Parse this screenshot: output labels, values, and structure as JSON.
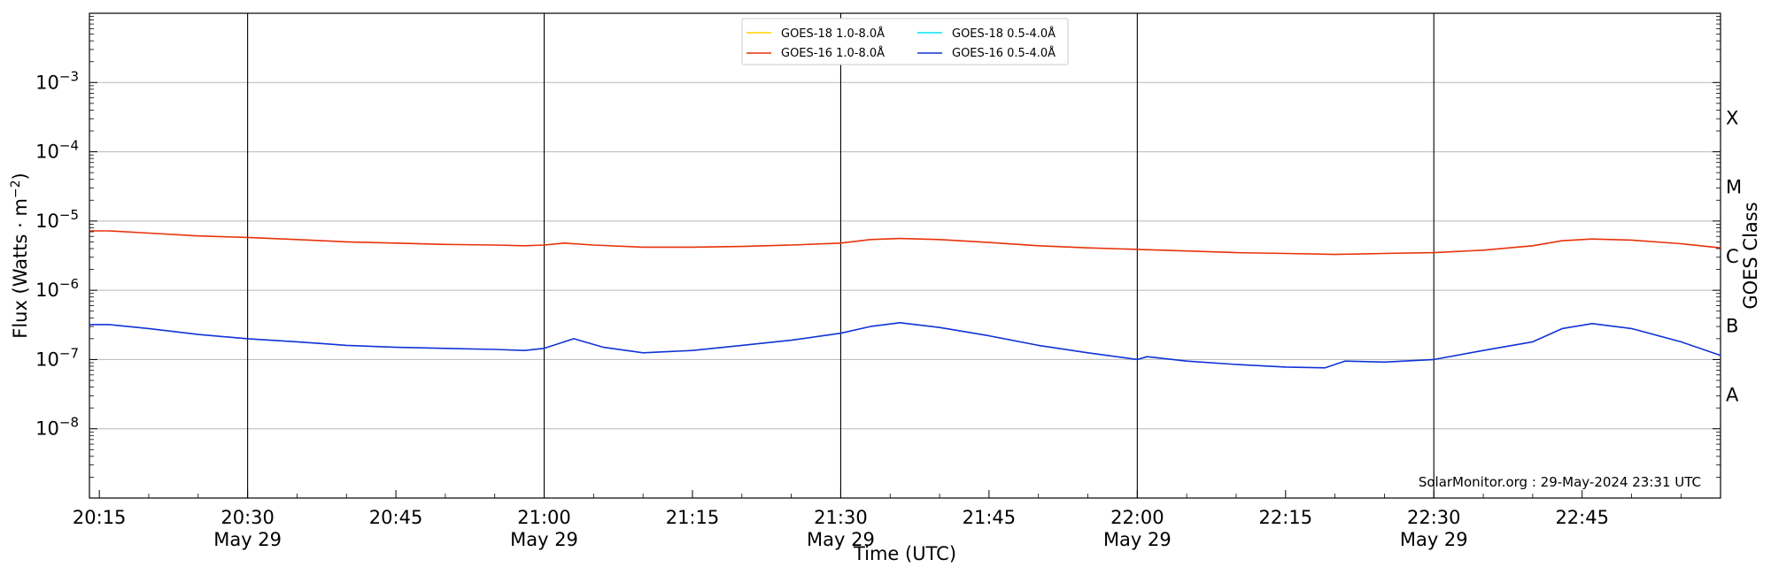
{
  "chart_data": {
    "type": "line",
    "xlabel": "Time (UTC)",
    "ylabel_main": "Flux (Watts · m",
    "ylabel_exp": "−2",
    "ylabel_close": ")",
    "right_label": "GOES Class",
    "credit": "SolarMonitor.org : 29-May-2024 23:31 UTC",
    "y_scale": "log",
    "ylim": [
      1e-09,
      0.01
    ],
    "xlim_minutes": [
      1214,
      1379
    ],
    "x_ticks": [
      {
        "minute": 1215,
        "label": "20:15",
        "date": ""
      },
      {
        "minute": 1230,
        "label": "20:30",
        "date": "May 29"
      },
      {
        "minute": 1245,
        "label": "20:45",
        "date": ""
      },
      {
        "minute": 1260,
        "label": "21:00",
        "date": "May 29"
      },
      {
        "minute": 1275,
        "label": "21:15",
        "date": ""
      },
      {
        "minute": 1290,
        "label": "21:30",
        "date": "May 29"
      },
      {
        "minute": 1305,
        "label": "21:45",
        "date": ""
      },
      {
        "minute": 1320,
        "label": "22:00",
        "date": "May 29"
      },
      {
        "minute": 1335,
        "label": "22:15",
        "date": ""
      },
      {
        "minute": 1350,
        "label": "22:30",
        "date": "May 29"
      },
      {
        "minute": 1365,
        "label": "22:45",
        "date": ""
      }
    ],
    "y_ticks": [
      {
        "exp": -8,
        "base": "10",
        "sup": "−8"
      },
      {
        "exp": -7,
        "base": "10",
        "sup": "−7"
      },
      {
        "exp": -6,
        "base": "10",
        "sup": "−6"
      },
      {
        "exp": -5,
        "base": "10",
        "sup": "−5"
      },
      {
        "exp": -4,
        "base": "10",
        "sup": "−4"
      },
      {
        "exp": -3,
        "base": "10",
        "sup": "−3"
      }
    ],
    "goes_classes": [
      {
        "label": "A",
        "exp": -7.5
      },
      {
        "label": "B",
        "exp": -6.5
      },
      {
        "label": "C",
        "exp": -5.5
      },
      {
        "label": "M",
        "exp": -4.5
      },
      {
        "label": "X",
        "exp": -3.5
      }
    ],
    "grid": true,
    "legend_position": "top-center",
    "series": [
      {
        "name": "GOES-18 1.0-8.0Å",
        "color": "#ffd400",
        "x_minutes": [],
        "values": []
      },
      {
        "name": "GOES-18 0.5-4.0Å",
        "color": "#00e5ee",
        "x_minutes": [],
        "values": []
      },
      {
        "name": "GOES-16 1.0-8.0Å",
        "color": "#e8320a",
        "x_minutes": [
          1214,
          1216,
          1220,
          1225,
          1230,
          1235,
          1240,
          1245,
          1250,
          1255,
          1258,
          1260,
          1262,
          1265,
          1270,
          1275,
          1280,
          1285,
          1290,
          1293,
          1296,
          1300,
          1305,
          1310,
          1315,
          1320,
          1325,
          1330,
          1335,
          1340,
          1345,
          1350,
          1355,
          1360,
          1363,
          1366,
          1370,
          1375,
          1379
        ],
        "values": [
          7.2e-06,
          7.2e-06,
          6.7e-06,
          6.1e-06,
          5.8e-06,
          5.4e-06,
          5e-06,
          4.8e-06,
          4.6e-06,
          4.5e-06,
          4.4e-06,
          4.5e-06,
          4.8e-06,
          4.5e-06,
          4.2e-06,
          4.2e-06,
          4.3e-06,
          4.5e-06,
          4.8e-06,
          5.4e-06,
          5.6e-06,
          5.4e-06,
          4.9e-06,
          4.4e-06,
          4.1e-06,
          3.9e-06,
          3.7e-06,
          3.5e-06,
          3.4e-06,
          3.3e-06,
          3.4e-06,
          3.5e-06,
          3.8e-06,
          4.4e-06,
          5.2e-06,
          5.5e-06,
          5.3e-06,
          4.7e-06,
          4.1e-06
        ]
      },
      {
        "name": "GOES-16 0.5-4.0Å",
        "color": "#1033d6",
        "x_minutes": [
          1214,
          1216,
          1220,
          1225,
          1230,
          1235,
          1240,
          1245,
          1250,
          1255,
          1258,
          1260,
          1263,
          1266,
          1270,
          1275,
          1280,
          1285,
          1290,
          1293,
          1296,
          1300,
          1305,
          1310,
          1315,
          1320,
          1321,
          1325,
          1330,
          1335,
          1339,
          1341,
          1345,
          1350,
          1355,
          1360,
          1363,
          1366,
          1370,
          1375,
          1379
        ],
        "values": [
          3.2e-07,
          3.2e-07,
          2.8e-07,
          2.3e-07,
          2e-07,
          1.8e-07,
          1.6e-07,
          1.5e-07,
          1.45e-07,
          1.4e-07,
          1.35e-07,
          1.45e-07,
          2e-07,
          1.5e-07,
          1.25e-07,
          1.35e-07,
          1.6e-07,
          1.9e-07,
          2.4e-07,
          3e-07,
          3.4e-07,
          2.9e-07,
          2.2e-07,
          1.6e-07,
          1.25e-07,
          1e-07,
          1.1e-07,
          9.5e-08,
          8.5e-08,
          7.8e-08,
          7.6e-08,
          9.5e-08,
          9.2e-08,
          1e-07,
          1.35e-07,
          1.8e-07,
          2.8e-07,
          3.3e-07,
          2.8e-07,
          1.8e-07,
          1.15e-07
        ]
      }
    ]
  }
}
